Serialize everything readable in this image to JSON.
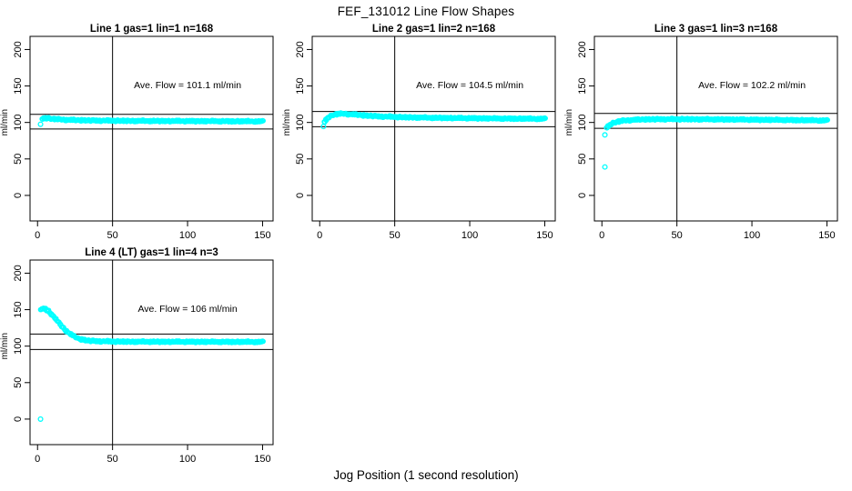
{
  "page": {
    "title": "FEF_131012  Line Flow Shapes",
    "xlabel": "Jog Position (1 second resolution)",
    "background": "#ffffff",
    "point_color": "#00ffff",
    "axis_color": "#000000"
  },
  "chart_data": [
    {
      "type": "scatter",
      "title": "Line 1 gas=1 lin=1 n=168",
      "line": 1,
      "gas": 1,
      "lin": 1,
      "n": 168,
      "annotation": "Ave. Flow =  101.1  ml/min",
      "ave_flow": 101.1,
      "ylabel": "ml/min",
      "x_ticks": [
        0,
        50,
        100,
        150
      ],
      "y_ticks": [
        0,
        50,
        100,
        150,
        200
      ],
      "xlim": [
        -5,
        157
      ],
      "ylim": [
        -35,
        218
      ],
      "vline_x": 50,
      "hlines": [
        111.2,
        91.0
      ],
      "outliers": [
        [
          2,
          97.5
        ]
      ],
      "band_keypoints": [
        [
          3,
          105
        ],
        [
          5,
          106
        ],
        [
          8,
          105.5
        ],
        [
          12,
          104.5
        ],
        [
          18,
          103.8
        ],
        [
          25,
          103.2
        ],
        [
          35,
          102.8
        ],
        [
          50,
          102.4
        ],
        [
          70,
          102.1
        ],
        [
          100,
          101.9
        ],
        [
          125,
          101.7
        ],
        [
          150,
          101.5
        ]
      ],
      "x_end": 150
    },
    {
      "type": "scatter",
      "title": "Line 2 gas=1 lin=2 n=168",
      "line": 2,
      "gas": 1,
      "lin": 2,
      "n": 168,
      "annotation": "Ave. Flow =  104.5  ml/min",
      "ave_flow": 104.5,
      "ylabel": "ml/min",
      "x_ticks": [
        0,
        50,
        100,
        150
      ],
      "y_ticks": [
        0,
        50,
        100,
        150,
        200
      ],
      "xlim": [
        -5,
        157
      ],
      "ylim": [
        -35,
        218
      ],
      "vline_x": 50,
      "hlines": [
        115.0,
        94.1
      ],
      "outliers": [
        [
          2.5,
          94.5
        ]
      ],
      "band_keypoints": [
        [
          3,
          101
        ],
        [
          5,
          106
        ],
        [
          8,
          110
        ],
        [
          12,
          111.8
        ],
        [
          16,
          112
        ],
        [
          22,
          111
        ],
        [
          30,
          109.5
        ],
        [
          40,
          108.3
        ],
        [
          55,
          107.2
        ],
        [
          75,
          106.4
        ],
        [
          100,
          105.8
        ],
        [
          125,
          105.3
        ],
        [
          150,
          105
        ]
      ],
      "x_end": 150
    },
    {
      "type": "scatter",
      "title": "Line 3 gas=1 lin=3 n=168",
      "line": 3,
      "gas": 1,
      "lin": 3,
      "n": 168,
      "annotation": "Ave. Flow =  102.2  ml/min",
      "ave_flow": 102.2,
      "ylabel": "ml/min",
      "x_ticks": [
        0,
        50,
        100,
        150
      ],
      "y_ticks": [
        0,
        50,
        100,
        150,
        200
      ],
      "xlim": [
        -5,
        157
      ],
      "ylim": [
        -35,
        218
      ],
      "vline_x": 50,
      "hlines": [
        112.4,
        92.0
      ],
      "outliers": [
        [
          2,
          83
        ],
        [
          2,
          39
        ]
      ],
      "band_keypoints": [
        [
          3,
          93
        ],
        [
          5,
          96.5
        ],
        [
          7,
          99
        ],
        [
          10,
          101
        ],
        [
          14,
          102.5
        ],
        [
          20,
          103.5
        ],
        [
          28,
          104.2
        ],
        [
          40,
          104.5
        ],
        [
          60,
          104.4
        ],
        [
          85,
          104.1
        ],
        [
          110,
          103.6
        ],
        [
          130,
          103.2
        ],
        [
          150,
          102.7
        ]
      ],
      "x_end": 150
    },
    {
      "type": "scatter",
      "title": "Line 4 (LT) gas=1 lin=4 n=3",
      "line": 4,
      "gas": 1,
      "lin": 4,
      "n": 3,
      "annotation": "Ave. Flow =  106  ml/min",
      "ave_flow": 106,
      "ylabel": "ml/min",
      "x_ticks": [
        0,
        50,
        100,
        150
      ],
      "y_ticks": [
        0,
        50,
        100,
        150,
        200
      ],
      "xlim": [
        -5,
        157
      ],
      "ylim": [
        -35,
        218
      ],
      "vline_x": 50,
      "hlines": [
        116.6,
        95.4
      ],
      "outliers": [
        [
          2,
          0
        ]
      ],
      "band_keypoints": [
        [
          2,
          150
        ],
        [
          3,
          151.5
        ],
        [
          5,
          151
        ],
        [
          7,
          148
        ],
        [
          9,
          144
        ],
        [
          11,
          139.5
        ],
        [
          13,
          134.5
        ],
        [
          15,
          129.5
        ],
        [
          17,
          125
        ],
        [
          19,
          121
        ],
        [
          21,
          117.5
        ],
        [
          24,
          113.5
        ],
        [
          27,
          110.5
        ],
        [
          30,
          108.8
        ],
        [
          34,
          107.5
        ],
        [
          40,
          106.8
        ],
        [
          50,
          106.3
        ],
        [
          65,
          106.1
        ],
        [
          90,
          106
        ],
        [
          120,
          105.9
        ],
        [
          150,
          105.8
        ]
      ],
      "x_end": 150
    }
  ]
}
